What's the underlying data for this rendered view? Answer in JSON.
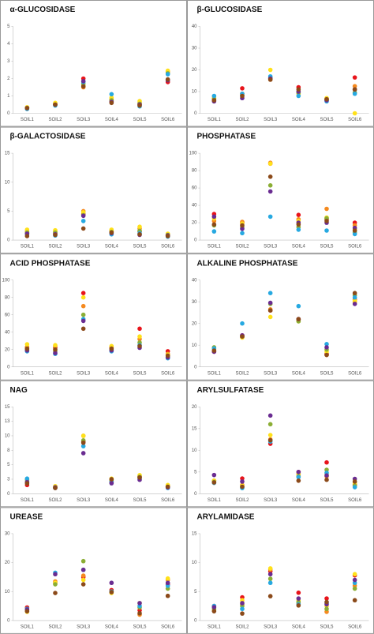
{
  "chart_data": [
    {
      "type": "dot",
      "title": "α-GLUCOSIDASE",
      "categories": [
        "SOIL1",
        "SOIL2",
        "SOIL3",
        "SOIL4",
        "SOIL5",
        "SOIL6"
      ],
      "ylim": [
        0,
        5
      ],
      "yticks": [
        0,
        1,
        2,
        3,
        4,
        5
      ],
      "series": [
        {
          "color": "#e8141b",
          "values": [
            0.3,
            0.5,
            2.0,
            0.7,
            0.5,
            1.8
          ]
        },
        {
          "color": "#f58a1f",
          "values": [
            0.3,
            0.55,
            1.5,
            0.8,
            0.6,
            2.4
          ]
        },
        {
          "color": "#ffe11a",
          "values": [
            0.35,
            0.6,
            1.6,
            0.9,
            0.7,
            2.45
          ]
        },
        {
          "color": "#8bae35",
          "values": [
            0.3,
            0.5,
            1.7,
            0.75,
            0.55,
            2.3
          ]
        },
        {
          "color": "#27a9e1",
          "values": [
            0.25,
            0.45,
            1.8,
            1.1,
            0.4,
            2.25
          ]
        },
        {
          "color": "#6a2c91",
          "values": [
            0.3,
            0.5,
            1.85,
            0.65,
            0.5,
            1.9
          ]
        },
        {
          "color": "#8b4a1a",
          "values": [
            0.3,
            0.5,
            1.55,
            0.6,
            0.45,
            1.95
          ]
        }
      ]
    },
    {
      "type": "dot",
      "title": "β-GLUCOSIDASE",
      "categories": [
        "SOIL1",
        "SOIL2",
        "SOIL3",
        "SOIL4",
        "SOIL5",
        "SOIL6"
      ],
      "ylim": [
        0,
        40
      ],
      "yticks": [
        0,
        10,
        20,
        30,
        40
      ],
      "series": [
        {
          "color": "#e8141b",
          "values": [
            6,
            11.5,
            16,
            12,
            6.5,
            16.5
          ]
        },
        {
          "color": "#f58a1f",
          "values": [
            7,
            9,
            15.5,
            10,
            6.5,
            12.5
          ]
        },
        {
          "color": "#ffe11a",
          "values": [
            7.5,
            8.5,
            20,
            9,
            7,
            0
          ]
        },
        {
          "color": "#8bae35",
          "values": [
            6.5,
            8,
            16.5,
            9.5,
            6,
            9.5
          ]
        },
        {
          "color": "#27a9e1",
          "values": [
            8,
            9,
            17,
            8,
            5.5,
            9
          ]
        },
        {
          "color": "#6a2c91",
          "values": [
            5.5,
            7,
            16,
            10,
            6,
            11
          ]
        },
        {
          "color": "#8b4a1a",
          "values": [
            6,
            8,
            15.5,
            11,
            6.5,
            11
          ]
        }
      ]
    },
    {
      "type": "dot",
      "title": "β-GALACTOSIDASE",
      "categories": [
        "SOIL1",
        "SOIL2",
        "SOIL3",
        "SOIL4",
        "SOIL5",
        "SOIL6"
      ],
      "ylim": [
        0,
        15
      ],
      "yticks": [
        0,
        5,
        10,
        15
      ],
      "series": [
        {
          "color": "#e8141b",
          "values": [
            1.2,
            1.2,
            4.5,
            1.5,
            1.5,
            0.8
          ]
        },
        {
          "color": "#f58a1f",
          "values": [
            1.5,
            1.5,
            5,
            1.6,
            2,
            1
          ]
        },
        {
          "color": "#ffe11a",
          "values": [
            1.8,
            1.7,
            4.8,
            1.8,
            2.3,
            1.1
          ]
        },
        {
          "color": "#8bae35",
          "values": [
            1.3,
            1.3,
            4.3,
            1.4,
            1.6,
            0.9
          ]
        },
        {
          "color": "#27a9e1",
          "values": [
            1,
            0.8,
            3.3,
            1,
            1.2,
            0.6
          ]
        },
        {
          "color": "#6a2c91",
          "values": [
            1.1,
            1,
            4.2,
            1.2,
            0.9,
            0.8
          ]
        },
        {
          "color": "#8b4a1a",
          "values": [
            0.7,
            0.9,
            2,
            1.3,
            1,
            0.7
          ]
        }
      ]
    },
    {
      "type": "dot",
      "title": "PHOSPHATASE",
      "categories": [
        "SOIL1",
        "SOIL2",
        "SOIL3",
        "SOIL4",
        "SOIL5",
        "SOIL6"
      ],
      "ylim": [
        0,
        100
      ],
      "yticks": [
        0,
        20,
        40,
        60,
        80,
        100
      ],
      "series": [
        {
          "color": "#e8141b",
          "values": [
            30,
            20,
            88,
            29,
            24,
            20
          ]
        },
        {
          "color": "#f58a1f",
          "values": [
            22,
            21,
            89,
            24,
            36,
            17
          ]
        },
        {
          "color": "#ffe11a",
          "values": [
            25,
            19,
            88,
            22,
            26,
            12
          ]
        },
        {
          "color": "#8bae35",
          "values": [
            17,
            15,
            63,
            15,
            25,
            9
          ]
        },
        {
          "color": "#27a9e1",
          "values": [
            10,
            8,
            27,
            12,
            11,
            7
          ]
        },
        {
          "color": "#6a2c91",
          "values": [
            27,
            13,
            56,
            20,
            20,
            14
          ]
        },
        {
          "color": "#8b4a1a",
          "values": [
            18,
            17,
            73,
            18,
            22,
            11
          ]
        }
      ]
    },
    {
      "type": "dot",
      "title": "ACID PHOSPHATASE",
      "categories": [
        "SOIL1",
        "SOIL2",
        "SOIL3",
        "SOIL4",
        "SOIL5",
        "SOIL6"
      ],
      "ylim": [
        0,
        100
      ],
      "yticks": [
        0,
        20,
        40,
        60,
        80,
        100
      ],
      "series": [
        {
          "color": "#e8141b",
          "values": [
            22,
            22,
            85,
            22,
            44,
            18
          ]
        },
        {
          "color": "#f58a1f",
          "values": [
            23,
            24,
            70,
            23,
            32,
            15
          ]
        },
        {
          "color": "#ffe11a",
          "values": [
            26,
            25,
            80,
            24,
            35,
            14
          ]
        },
        {
          "color": "#8bae35",
          "values": [
            20,
            18,
            60,
            20,
            28,
            12
          ]
        },
        {
          "color": "#27a9e1",
          "values": [
            18,
            15,
            55,
            18,
            25,
            10
          ]
        },
        {
          "color": "#6a2c91",
          "values": [
            19,
            16,
            53,
            19,
            22,
            11
          ]
        },
        {
          "color": "#8b4a1a",
          "values": [
            21,
            20,
            44,
            21,
            24,
            13
          ]
        }
      ]
    },
    {
      "type": "dot",
      "title": "ALKALINE PHOSPHATASE",
      "categories": [
        "SOIL1",
        "SOIL2",
        "SOIL3",
        "SOIL4",
        "SOIL5",
        "SOIL6"
      ],
      "ylim": [
        0,
        40
      ],
      "yticks": [
        0,
        10,
        20,
        30,
        40
      ],
      "series": [
        {
          "color": "#e8141b",
          "values": [
            7,
            14.5,
            26,
            22,
            6,
            31
          ]
        },
        {
          "color": "#f58a1f",
          "values": [
            7.5,
            14,
            26.5,
            21.5,
            5.5,
            30
          ]
        },
        {
          "color": "#ffe11a",
          "values": [
            8,
            13.5,
            23,
            21,
            7,
            30.5
          ]
        },
        {
          "color": "#8bae35",
          "values": [
            9,
            14,
            29,
            21,
            8,
            33
          ]
        },
        {
          "color": "#27a9e1",
          "values": [
            8.5,
            20,
            34,
            28,
            10.5,
            32
          ]
        },
        {
          "color": "#6a2c91",
          "values": [
            7,
            14.5,
            29.5,
            22,
            9,
            29
          ]
        },
        {
          "color": "#8b4a1a",
          "values": [
            7.5,
            14,
            26,
            22,
            5.5,
            34
          ]
        }
      ]
    },
    {
      "type": "dot",
      "title": "NAG",
      "categories": [
        "SOIL1",
        "SOIL2",
        "SOIL3",
        "SOIL4",
        "SOIL5",
        "SOIL6"
      ],
      "ylim": [
        0,
        15
      ],
      "yticks": [
        0,
        {
          "value": 2.5,
          "label": "3"
        },
        5,
        {
          "value": 7.5,
          "label": "8"
        },
        10,
        {
          "value": 12.5,
          "label": "13"
        },
        15
      ],
      "series": [
        {
          "color": "#e8141b",
          "values": [
            1.5,
            1,
            9,
            2,
            2.8,
            1.2
          ]
        },
        {
          "color": "#f58a1f",
          "values": [
            2,
            1.2,
            10,
            2.4,
            3,
            1.3
          ]
        },
        {
          "color": "#ffe11a",
          "values": [
            2.5,
            1.3,
            10,
            2.6,
            3.2,
            1.5
          ]
        },
        {
          "color": "#8bae35",
          "values": [
            2.4,
            1.1,
            9.2,
            2.2,
            2.9,
            1.2
          ]
        },
        {
          "color": "#27a9e1",
          "values": [
            2.6,
            1,
            8.2,
            2,
            2.6,
            1
          ]
        },
        {
          "color": "#6a2c91",
          "values": [
            2,
            1.1,
            7,
            1.8,
            2.4,
            1.1
          ]
        },
        {
          "color": "#8b4a1a",
          "values": [
            1.8,
            1,
            8.8,
            2.5,
            2.8,
            1.2
          ]
        }
      ]
    },
    {
      "type": "dot",
      "title": "ARYLSULFATASE",
      "categories": [
        "SOIL1",
        "SOIL2",
        "SOIL3",
        "SOIL4",
        "SOIL5",
        "SOIL6"
      ],
      "ylim": [
        0,
        20
      ],
      "yticks": [
        0,
        5,
        10,
        15,
        20
      ],
      "series": [
        {
          "color": "#e8141b",
          "values": [
            3,
            3.5,
            11.5,
            5,
            7.2,
            2
          ]
        },
        {
          "color": "#f58a1f",
          "values": [
            2.5,
            2,
            12.5,
            4.5,
            4,
            2.2
          ]
        },
        {
          "color": "#ffe11a",
          "values": [
            3,
            1.8,
            13.5,
            4.7,
            4.5,
            2.5
          ]
        },
        {
          "color": "#8bae35",
          "values": [
            2.7,
            1.5,
            16,
            4,
            5.5,
            1.8
          ]
        },
        {
          "color": "#27a9e1",
          "values": [
            2.5,
            1.3,
            12,
            3.8,
            4.8,
            1.5
          ]
        },
        {
          "color": "#6a2c91",
          "values": [
            4.3,
            2.8,
            18,
            5,
            4.2,
            3.4
          ]
        },
        {
          "color": "#8b4a1a",
          "values": [
            2.6,
            1.6,
            12.3,
            3,
            3.2,
            2.8
          ]
        }
      ]
    },
    {
      "type": "dot",
      "title": "UREASE",
      "categories": [
        "SOIL1",
        "SOIL2",
        "SOIL3",
        "SOIL4",
        "SOIL5",
        "SOIL6"
      ],
      "ylim": [
        0,
        30
      ],
      "yticks": [
        0,
        10,
        20,
        30
      ],
      "series": [
        {
          "color": "#e8141b",
          "values": [
            4.5,
            13,
            15,
            10.5,
            3.5,
            12.5
          ]
        },
        {
          "color": "#f58a1f",
          "values": [
            3.5,
            13.5,
            15.5,
            10,
            2,
            14
          ]
        },
        {
          "color": "#ffe11a",
          "values": [
            3,
            13,
            14,
            9.5,
            6,
            14.5
          ]
        },
        {
          "color": "#8bae35",
          "values": [
            4,
            12.5,
            20.5,
            10,
            4.5,
            11
          ]
        },
        {
          "color": "#27a9e1",
          "values": [
            4,
            16.5,
            17.5,
            10,
            5,
            12
          ]
        },
        {
          "color": "#6a2c91",
          "values": [
            3.8,
            16,
            17.5,
            13,
            6,
            13
          ]
        },
        {
          "color": "#8b4a1a",
          "values": [
            3.2,
            9.5,
            12.5,
            9.8,
            2.5,
            8.5
          ]
        }
      ]
    },
    {
      "type": "dot",
      "title": "ARYLAMIDASE",
      "categories": [
        "SOIL1",
        "SOIL2",
        "SOIL3",
        "SOIL4",
        "SOIL5",
        "SOIL6"
      ],
      "ylim": [
        0,
        15
      ],
      "yticks": [
        0,
        5,
        10,
        15
      ],
      "series": [
        {
          "color": "#e8141b",
          "values": [
            2.5,
            4,
            8.5,
            4.8,
            3.8,
            7.8
          ]
        },
        {
          "color": "#f58a1f",
          "values": [
            2.2,
            2.8,
            8.8,
            3,
            1.5,
            6
          ]
        },
        {
          "color": "#ffe11a",
          "values": [
            1.8,
            3.5,
            9,
            3.5,
            2.5,
            8
          ]
        },
        {
          "color": "#8bae35",
          "values": [
            2,
            2.5,
            7.2,
            3.2,
            2,
            5.5
          ]
        },
        {
          "color": "#27a9e1",
          "values": [
            2.5,
            2,
            6.5,
            2.8,
            3,
            6.5
          ]
        },
        {
          "color": "#6a2c91",
          "values": [
            2.3,
            3,
            8,
            3.8,
            2.8,
            7
          ]
        },
        {
          "color": "#8b4a1a",
          "values": [
            1.6,
            1.2,
            4.2,
            2.6,
            3.2,
            3.5
          ]
        }
      ]
    }
  ]
}
